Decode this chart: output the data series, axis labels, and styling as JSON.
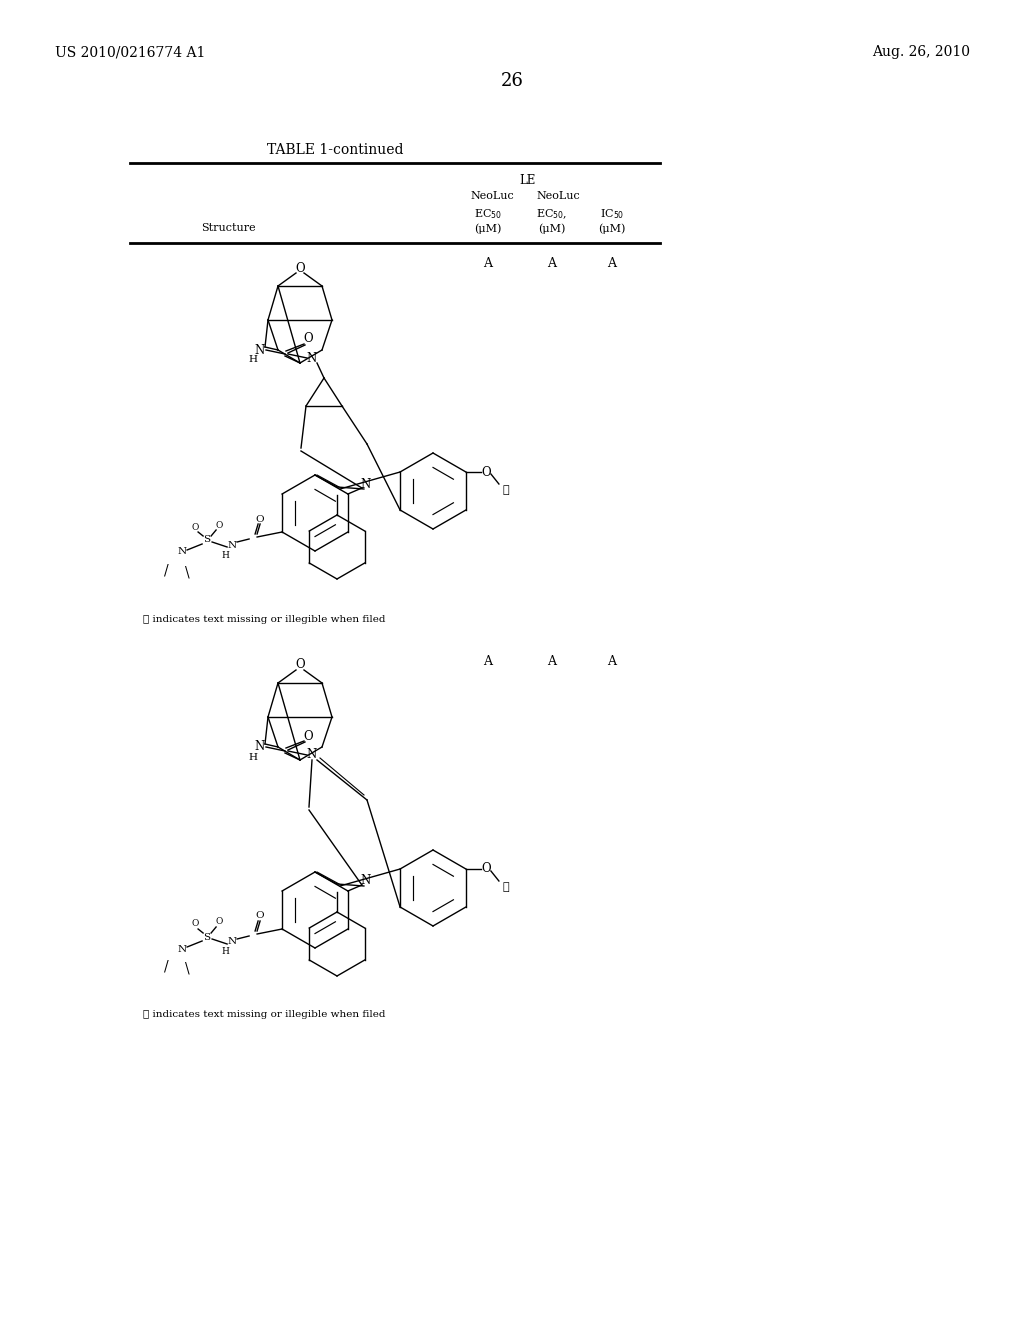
{
  "bg": "#ffffff",
  "header_left": "US 2010/0216774 A1",
  "header_right": "Aug. 26, 2010",
  "page_num": "26",
  "table_title": "TABLE 1-continued",
  "col_le": "LE",
  "col_nl1": "NeoLuc",
  "col_nl2": "NeoLuc",
  "col_ec1": "EC",
  "col_ec2": "EC",
  "col_ic": "IC",
  "col_um1": "(μM)",
  "col_um2": "(μM)",
  "col_um3": "(μM)",
  "col_struct": "Structure",
  "row1": [
    "A",
    "A",
    "A"
  ],
  "row2": [
    "A",
    "A",
    "A"
  ],
  "footnote": "Ⓡ indicates text missing or illegible when filed"
}
